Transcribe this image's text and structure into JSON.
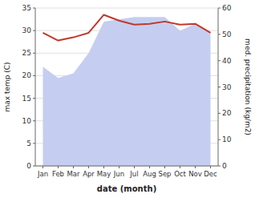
{
  "chart_data": {
    "type": "line",
    "xlabel": "date (month)",
    "ylabel": "max temp (C)",
    "y2label": "med. precipitation (kg/m2)",
    "categories": [
      "Jan",
      "Feb",
      "Mar",
      "Apr",
      "May",
      "Jun",
      "Jul",
      "Aug",
      "Sep",
      "Oct",
      "Nov",
      "Dec"
    ],
    "series": [
      {
        "type": "area",
        "axis": "y2",
        "color": "#c5cef0",
        "values": [
          37.714285714285715,
          33.42857142857143,
          35.142857142857146,
          42.857142857142854,
          54.857142857142854,
          55.714285714285715,
          56.57142857142857,
          56.57142857142857,
          56.57142857142857,
          51.42857142857142,
          54,
          50.57142857142857
        ]
      },
      {
        "type": "line",
        "color": "#c0392b",
        "values": [
          29.5,
          27.8,
          28.5,
          29.5,
          33.5,
          32.2,
          31.3,
          31.5,
          32.0,
          31.3,
          31.5,
          29.5
        ]
      }
    ],
    "ylim": [
      0,
      35
    ],
    "yticks": [
      0,
      5,
      10,
      15,
      20,
      25,
      30,
      35
    ],
    "y2lim": [
      0,
      60
    ],
    "y2ticks": [
      0,
      10,
      20,
      30,
      40,
      50,
      60
    ],
    "grid": true
  }
}
